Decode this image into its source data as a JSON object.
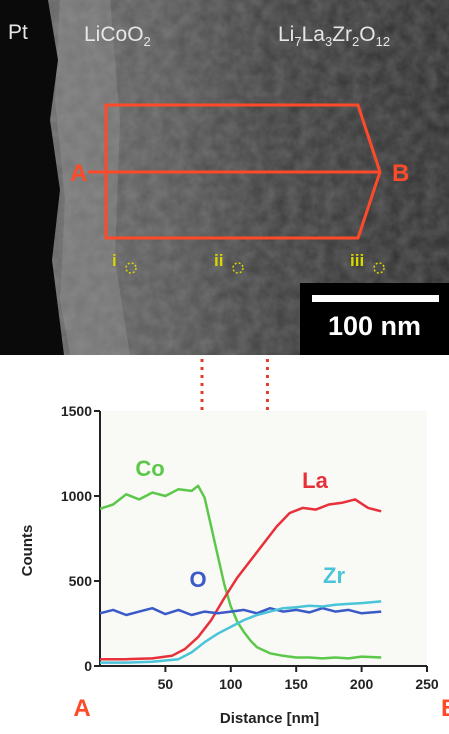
{
  "figure": {
    "tem_image": {
      "labels": {
        "pt": "Pt",
        "licoo2_main": "LiCoO",
        "licoo2_sub": "2",
        "llzo_li": "Li",
        "llzo_li_sub": "7",
        "llzo_la": "La",
        "llzo_la_sub": "3",
        "llzo_zr": "Zr",
        "llzo_zr_sub": "2",
        "llzo_o": "O",
        "llzo_o_sub": "12"
      },
      "roi_start_label": "A",
      "roi_end_label": "B",
      "roi_color": "#ff4a2a",
      "point_color": "#d8d800",
      "points": [
        "i",
        "ii",
        "iii"
      ],
      "scale_bar_label": "100 nm"
    },
    "plot_labels": {
      "start": "A",
      "end": "B"
    }
  },
  "chart_data": {
    "type": "line",
    "xlabel": "Distance [nm]",
    "ylabel": "Counts",
    "xlim": [
      0,
      250
    ],
    "ylim": [
      0,
      1500
    ],
    "xticks": [
      50,
      100,
      150,
      200,
      250
    ],
    "yticks": [
      0,
      500,
      1000,
      1500
    ],
    "x_tick_labels": [
      "50",
      "100",
      "150",
      "200",
      "250"
    ],
    "y_tick_labels": [
      "0",
      "500",
      "1000",
      "1500"
    ],
    "grid": false,
    "dotted_markers_x": [
      78,
      128
    ],
    "series": [
      {
        "name": "Co",
        "color": "#5cc84a",
        "x": [
          0,
          10,
          20,
          30,
          40,
          50,
          60,
          70,
          75,
          80,
          85,
          90,
          95,
          100,
          105,
          110,
          115,
          120,
          130,
          140,
          150,
          160,
          170,
          180,
          190,
          200,
          215
        ],
        "y": [
          925,
          950,
          1010,
          980,
          1020,
          1000,
          1040,
          1030,
          1060,
          990,
          820,
          650,
          480,
          350,
          260,
          200,
          150,
          110,
          75,
          60,
          50,
          50,
          45,
          50,
          45,
          55,
          50
        ]
      },
      {
        "name": "La",
        "color": "#e8303a",
        "x": [
          0,
          20,
          40,
          55,
          65,
          75,
          85,
          95,
          105,
          115,
          125,
          135,
          145,
          155,
          165,
          175,
          185,
          195,
          205,
          215
        ],
        "y": [
          40,
          40,
          45,
          60,
          100,
          170,
          270,
          400,
          520,
          620,
          720,
          820,
          900,
          930,
          920,
          950,
          960,
          980,
          930,
          910
        ]
      },
      {
        "name": "O",
        "color": "#3a5ac8",
        "x": [
          0,
          10,
          20,
          30,
          40,
          50,
          60,
          70,
          80,
          90,
          100,
          110,
          120,
          130,
          140,
          150,
          160,
          170,
          180,
          190,
          200,
          215
        ],
        "y": [
          310,
          330,
          300,
          320,
          340,
          305,
          330,
          300,
          320,
          310,
          320,
          330,
          310,
          340,
          320,
          330,
          315,
          340,
          320,
          330,
          310,
          320
        ]
      },
      {
        "name": "Zr",
        "color": "#4ac4d8",
        "x": [
          0,
          20,
          40,
          60,
          70,
          80,
          90,
          100,
          110,
          120,
          130,
          140,
          150,
          160,
          170,
          180,
          190,
          200,
          215
        ],
        "y": [
          20,
          20,
          25,
          40,
          80,
          140,
          190,
          230,
          270,
          300,
          320,
          340,
          345,
          355,
          350,
          360,
          365,
          370,
          380
        ]
      }
    ]
  }
}
